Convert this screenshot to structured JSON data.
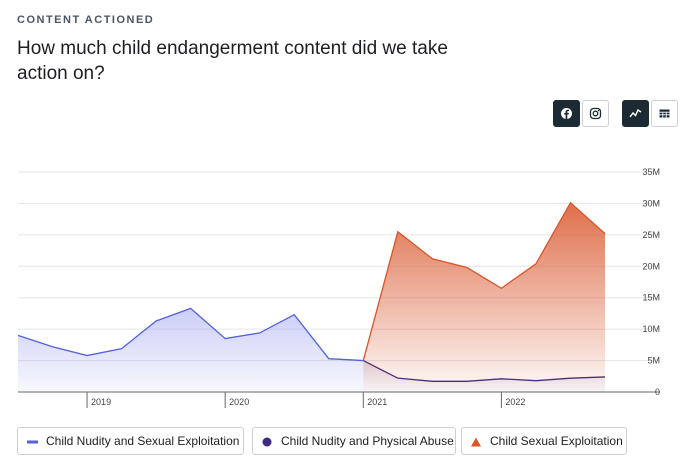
{
  "kicker": "CONTENT ACTIONED",
  "chart_data": {
    "type": "area",
    "title": "How much child endangerment content did we take action on?",
    "categories": [
      null,
      null,
      "2019",
      null,
      null,
      null,
      "2020",
      null,
      null,
      null,
      "2021",
      null,
      null,
      null,
      "2022",
      null,
      null,
      null
    ],
    "series": [
      {
        "name": "Child Nudity and Sexual Exploitation",
        "color": "#5560dd",
        "values": [
          9000000,
          7200000,
          5800000,
          6900000,
          11300000,
          13300000,
          8500000,
          9400000,
          12300000,
          5300000,
          5000000,
          null,
          null,
          null,
          null,
          null,
          null,
          null
        ]
      },
      {
        "name": "Child Nudity and Physical Abuse",
        "color": "#3d2a82",
        "values": [
          null,
          null,
          null,
          null,
          null,
          null,
          null,
          null,
          null,
          null,
          5000000,
          2200000,
          1700000,
          1700000,
          2100000,
          1800000,
          2200000,
          2400000
        ]
      },
      {
        "name": "Child Sexual Exploitation",
        "color": "#d9552a",
        "values": [
          null,
          null,
          null,
          null,
          null,
          null,
          null,
          null,
          null,
          null,
          5000000,
          25500000,
          21200000,
          19800000,
          16500000,
          20400000,
          30100000,
          25200000
        ]
      }
    ],
    "ylim": [
      0,
      35000000
    ],
    "yticks": [
      0,
      {
        "value": 5000000,
        "label": "5M"
      },
      {
        "value": 10000000,
        "label": "10M"
      },
      {
        "value": 15000000,
        "label": "15M"
      },
      {
        "value": 20000000,
        "label": "20M"
      },
      {
        "value": 25000000,
        "label": "25M"
      },
      {
        "value": 30000000,
        "label": "30M"
      },
      {
        "value": 35000000,
        "label": "35M"
      }
    ],
    "grid": true
  }
}
